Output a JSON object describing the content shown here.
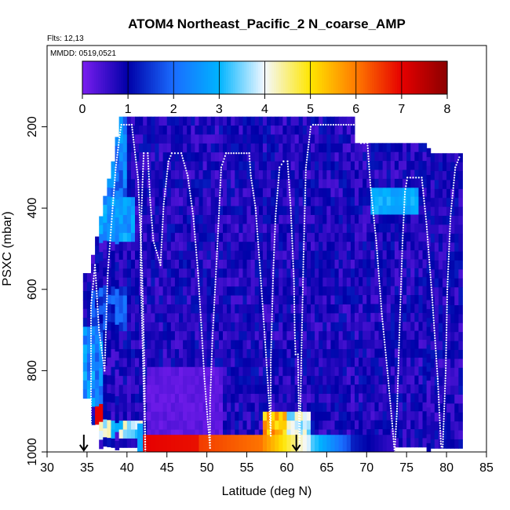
{
  "chart_data": {
    "type": "heatmap",
    "title": "ATOM4 Northeast_Pacific_2 N_coarse_AMP",
    "notes": [
      "Flts: 12,13",
      "MMDD: 0519,0521"
    ],
    "xlabel": "Latitude (deg N)",
    "ylabel": "PSXC (mbar)",
    "xlim": [
      30,
      85
    ],
    "ylim": [
      1000,
      0
    ],
    "xticks": [
      30,
      35,
      40,
      45,
      50,
      55,
      60,
      65,
      70,
      75,
      80,
      85
    ],
    "yticks": [
      200,
      400,
      600,
      800,
      1000
    ],
    "colorbar": {
      "range": [
        0,
        8
      ],
      "ticks": [
        0,
        1,
        2,
        3,
        4,
        5,
        6,
        7,
        8
      ],
      "colors": [
        "#7a1ef0",
        "#0000a8",
        "#1a6cff",
        "#00b4ff",
        "#f4f8ff",
        "#ffe600",
        "#ff7a00",
        "#e60000",
        "#8b0000"
      ]
    },
    "grid": false,
    "legend": "colorbar-top-inset",
    "markers": [
      {
        "type": "arrow-down",
        "x": 34.6
      },
      {
        "type": "arrow-down",
        "x": 61.2
      }
    ],
    "track": [
      [
        35.5,
        1000
      ],
      [
        35.5,
        640
      ],
      [
        35.8,
        580
      ],
      [
        36,
        540
      ],
      [
        36.5,
        700
      ],
      [
        37.2,
        800
      ],
      [
        37.6,
        560
      ],
      [
        37.9,
        480
      ],
      [
        38.2,
        400
      ],
      [
        38.6,
        300
      ],
      [
        39.1,
        220
      ],
      [
        39.3,
        195
      ],
      [
        40.6,
        195
      ],
      [
        41.4,
        330
      ],
      [
        41.9,
        560
      ],
      [
        42.2,
        800
      ],
      [
        42.3,
        1000
      ],
      [
        41.7,
        540
      ],
      [
        41.8,
        420
      ],
      [
        42.0,
        310
      ],
      [
        42.1,
        265
      ],
      [
        42.6,
        265
      ],
      [
        42.9,
        380
      ],
      [
        43.3,
        480
      ],
      [
        44.2,
        540
      ],
      [
        44.6,
        390
      ],
      [
        45.2,
        285
      ],
      [
        45.6,
        265
      ],
      [
        46.8,
        265
      ],
      [
        47.6,
        320
      ],
      [
        48.3,
        420
      ],
      [
        48.9,
        560
      ],
      [
        49.4,
        720
      ],
      [
        49.7,
        820
      ],
      [
        50.1,
        920
      ],
      [
        50.4,
        990
      ],
      [
        50.4,
        880
      ],
      [
        50.7,
        720
      ],
      [
        51.3,
        500
      ],
      [
        51.8,
        300
      ],
      [
        52.4,
        265
      ],
      [
        55.3,
        265
      ],
      [
        55.5,
        320
      ],
      [
        56.1,
        400
      ],
      [
        56.7,
        560
      ],
      [
        57.3,
        730
      ],
      [
        57.8,
        880
      ],
      [
        58.0,
        960
      ],
      [
        58.0,
        780
      ],
      [
        58.3,
        560
      ],
      [
        58.6,
        420
      ],
      [
        59.1,
        300
      ],
      [
        59.6,
        285
      ],
      [
        60.1,
        285
      ],
      [
        60.5,
        400
      ],
      [
        60.9,
        580
      ],
      [
        61.0,
        700
      ],
      [
        61.1,
        760
      ],
      [
        61.4,
        760
      ],
      [
        61.5,
        880
      ],
      [
        61.6,
        1000
      ],
      [
        61.9,
        700
      ],
      [
        62.1,
        520
      ],
      [
        62.4,
        300
      ],
      [
        63.0,
        200
      ],
      [
        63.3,
        195
      ],
      [
        68.7,
        195
      ],
      [
        69.3,
        240
      ],
      [
        70.1,
        240
      ],
      [
        70.5,
        350
      ],
      [
        71.2,
        480
      ],
      [
        71.9,
        660
      ],
      [
        72.6,
        800
      ],
      [
        73.2,
        930
      ],
      [
        73.5,
        1000
      ],
      [
        73.8,
        900
      ],
      [
        74.2,
        650
      ],
      [
        74.5,
        480
      ],
      [
        74.8,
        360
      ],
      [
        75.1,
        325
      ],
      [
        76.9,
        325
      ],
      [
        77.5,
        440
      ],
      [
        78.2,
        620
      ],
      [
        78.9,
        820
      ],
      [
        79.3,
        980
      ],
      [
        79.5,
        1000
      ],
      [
        79.9,
        800
      ],
      [
        80.1,
        600
      ],
      [
        80.5,
        420
      ],
      [
        81.1,
        300
      ],
      [
        81.6,
        275
      ]
    ]
  }
}
